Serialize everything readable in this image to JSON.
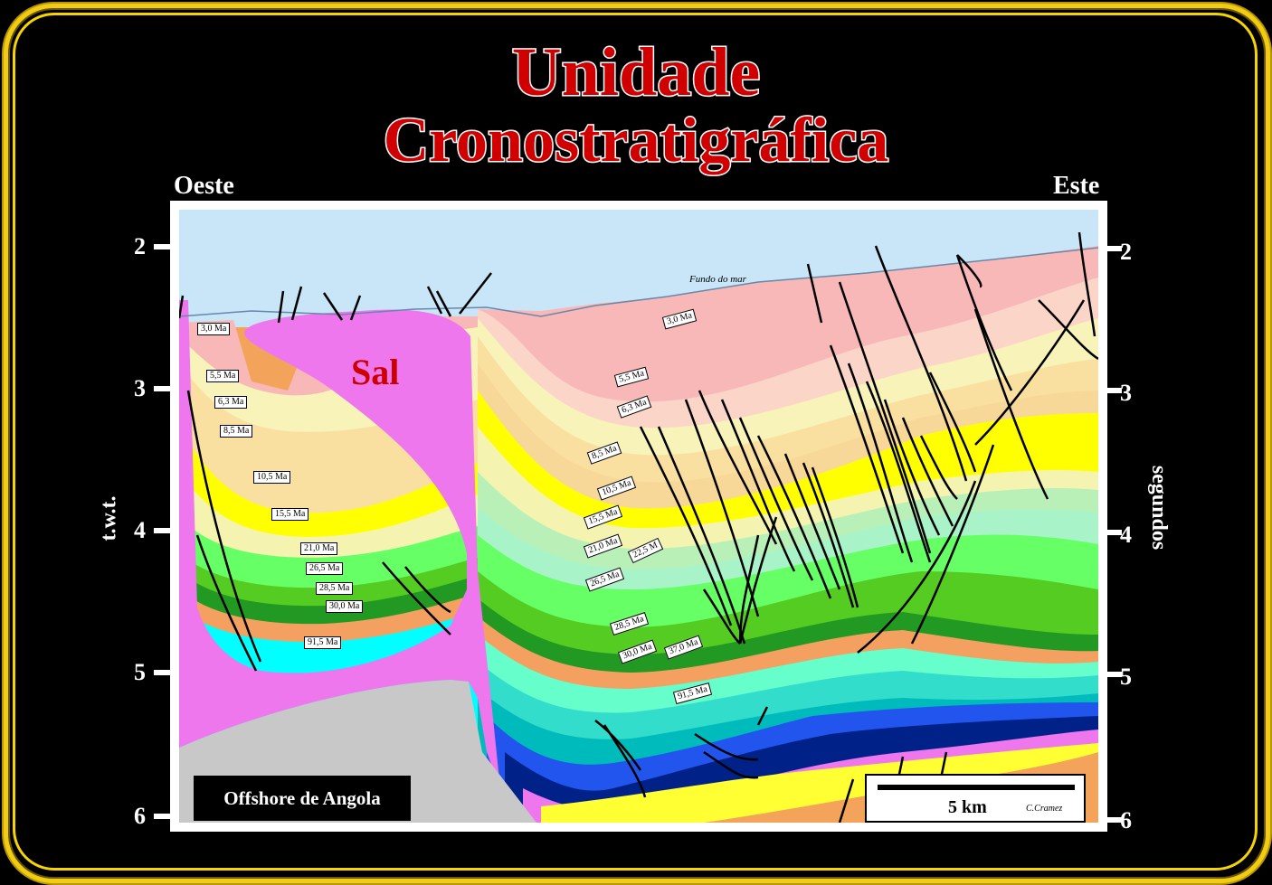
{
  "title": {
    "line1": "Unidade",
    "line2": "Cronostratigráfica"
  },
  "directions": {
    "west": "Oeste",
    "east": "Este"
  },
  "axes": {
    "left_label": "t.w.t.",
    "right_label": "segundos",
    "ticks": [
      "2",
      "3",
      "4",
      "5",
      "6"
    ]
  },
  "labels": {
    "salt": "Sal",
    "seafloor": "Fundo do mar",
    "location": "Offshore de Angola",
    "scale": "5 km",
    "credit": "C.Cramez"
  },
  "ages_west": [
    "3,0 Ma",
    "5,5 Ma",
    "6,3 Ma",
    "8,5 Ma",
    "10,5 Ma",
    "15,5 Ma",
    "21,0 Ma",
    "26,5 Ma",
    "28,5 Ma",
    "30,0 Ma",
    "91,5 Ma"
  ],
  "ages_east": [
    "3,0 Ma",
    "5,5 Ma",
    "6,3 Ma",
    "8,5 Ma",
    "10,5 Ma",
    "15,5 Ma",
    "21,0 Ma",
    "22,5 M",
    "26,5 Ma",
    "28,5 Ma",
    "30,0 Ma",
    "37,0 Ma",
    "91,5 Ma"
  ],
  "colors": {
    "frame": "#f2cc14",
    "title": "#d10000",
    "water": "#c8e6f8",
    "salt": "#ee77ee",
    "basement": "#c8c8c8"
  }
}
